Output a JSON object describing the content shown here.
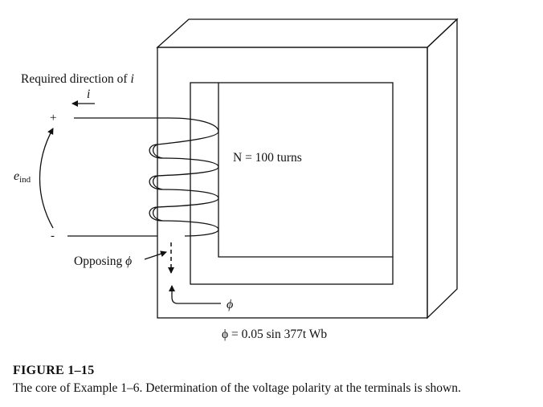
{
  "labels": {
    "required_direction": "Required direction of ",
    "required_direction_var": "i",
    "current_symbol": "i",
    "plus": "+",
    "minus": "-",
    "emf_main": "e",
    "emf_sub": "ind",
    "turns": "N = 100 turns",
    "opposing_text": "Opposing ",
    "opposing_phi": "ϕ",
    "flux_symbol": "ϕ",
    "flux_equation": "ϕ = 0.05 sin 377t Wb"
  },
  "caption": {
    "title": "FIGURE 1–15",
    "text": "The core of Example 1–6. Determination of the voltage polarity at the terminals is shown."
  }
}
